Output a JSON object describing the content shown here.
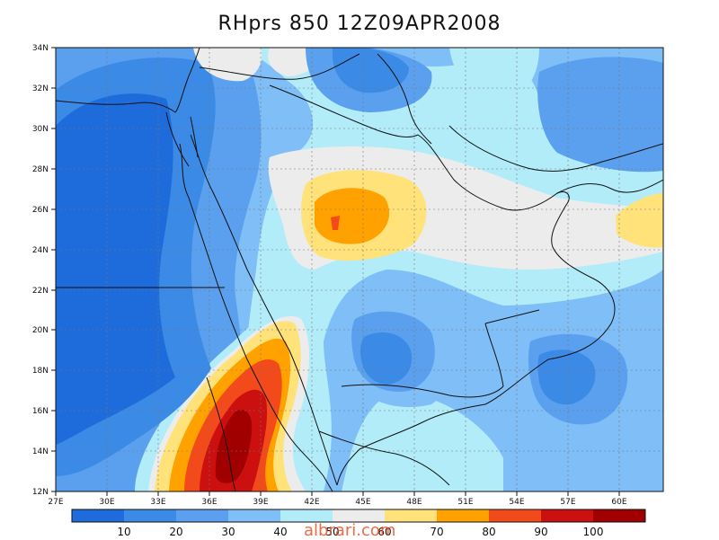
{
  "title": "RHprs 850 12Z09APR2008",
  "watermark": "albrari.com",
  "map": {
    "lon_range": [
      27,
      62
    ],
    "lat_range": [
      12,
      34
    ],
    "lon_ticks": [
      "27E",
      "30E",
      "33E",
      "36E",
      "39E",
      "42E",
      "45E",
      "48E",
      "51E",
      "54E",
      "57E",
      "60E"
    ],
    "lat_ticks": [
      "12N",
      "14N",
      "16N",
      "18N",
      "20N",
      "22N",
      "24N",
      "26N",
      "28N",
      "30N",
      "32N",
      "34N"
    ]
  },
  "colorbar": {
    "labels": [
      "10",
      "20",
      "30",
      "40",
      "50",
      "60",
      "70",
      "80",
      "90",
      "100"
    ],
    "colors": [
      "#1e6cdc",
      "#3a8ae6",
      "#5aa0ee",
      "#7fbef6",
      "#b2ecf8",
      "#ececec",
      "#ffe27a",
      "#ffa200",
      "#f24a1a",
      "#cc1010",
      "#a00000"
    ]
  },
  "palette": {
    "c10": "#1e6cdc",
    "c20": "#3a8ae6",
    "c30": "#5aa0ee",
    "c40": "#7fbef6",
    "c50": "#b2ecf8",
    "c60": "#ececec",
    "c70": "#ffe27a",
    "c80": "#ffa200",
    "c90": "#f24a1a",
    "c100": "#cc1010",
    "c110": "#a00000"
  }
}
